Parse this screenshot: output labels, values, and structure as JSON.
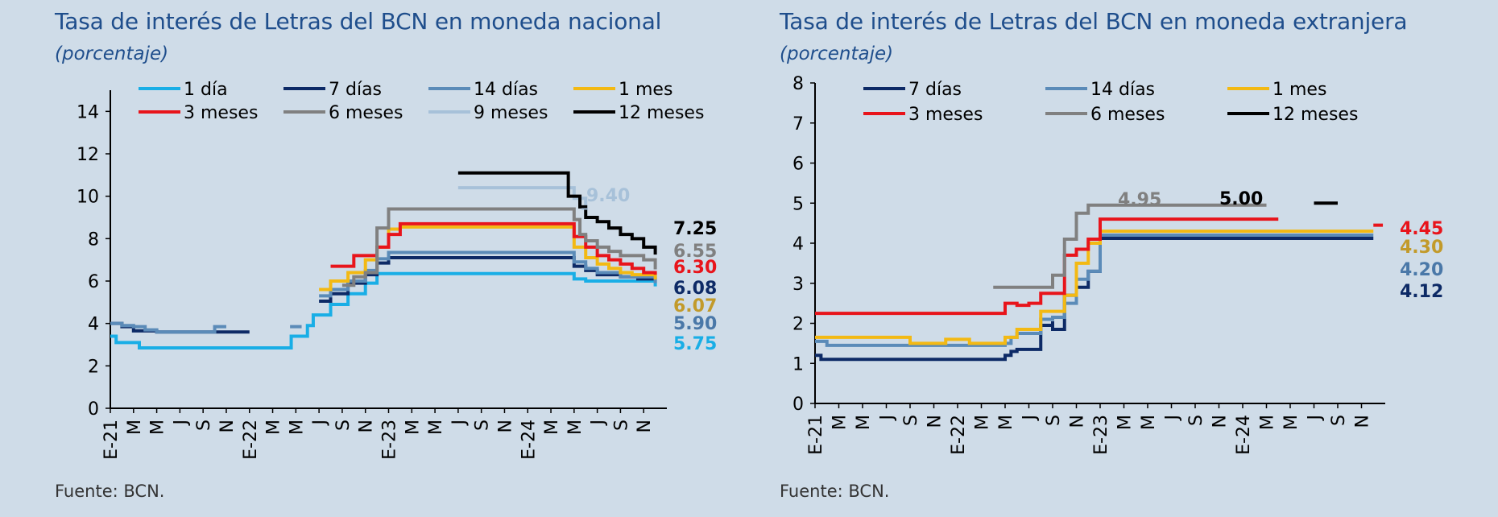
{
  "source_text": "Fuente: BCN.",
  "chart_data": [
    {
      "type": "line",
      "title": "Tasa de interés de Letras del BCN en moneda nacional",
      "subtitle": "(porcentaje)",
      "ylim": [
        0,
        15
      ],
      "yticks": [
        0,
        2,
        4,
        6,
        8,
        10,
        12,
        14
      ],
      "xlim": [
        0,
        48
      ],
      "xtick_labels": [
        "E-21",
        "M",
        "M",
        "J",
        "S",
        "N",
        "E-22",
        "M",
        "M",
        "J",
        "S",
        "N",
        "E-23",
        "M",
        "M",
        "J",
        "S",
        "N",
        "E-24",
        "M",
        "M",
        "J",
        "S",
        "N"
      ],
      "x_unit": "months since Jan-2021",
      "series": [
        {
          "name": "1 día",
          "color": "#19aee6",
          "values": [
            [
              0,
              3.4
            ],
            [
              0.5,
              3.1
            ],
            [
              2.5,
              2.85
            ],
            [
              6,
              2.85
            ],
            [
              12,
              2.85
            ],
            [
              15.5,
              2.85
            ],
            [
              15.6,
              3.4
            ],
            [
              17,
              3.9
            ],
            [
              17.5,
              4.4
            ],
            [
              19,
              4.9
            ],
            [
              20.5,
              5.4
            ],
            [
              22,
              5.9
            ],
            [
              23,
              6.35
            ],
            [
              30,
              6.35
            ],
            [
              36,
              6.35
            ],
            [
              40,
              6.35
            ],
            [
              40,
              6.1
            ],
            [
              41,
              6.0
            ],
            [
              42,
              6.0
            ],
            [
              47,
              5.75
            ]
          ]
        },
        {
          "name": "7 días",
          "color": "#0d2a66",
          "values": [
            [
              0,
              4.0
            ],
            [
              1,
              3.85
            ],
            [
              2,
              3.65
            ],
            [
              4,
              3.6
            ],
            [
              12,
              3.6
            ],
            [
              12.5,
              null
            ],
            [
              18,
              5.05
            ],
            [
              19,
              5.4
            ],
            [
              20.5,
              5.9
            ],
            [
              22,
              6.3
            ],
            [
              23,
              6.85
            ],
            [
              24,
              7.1
            ],
            [
              36,
              7.1
            ],
            [
              40,
              7.1
            ],
            [
              40,
              6.7
            ],
            [
              41,
              6.5
            ],
            [
              42,
              6.3
            ],
            [
              44,
              6.2
            ],
            [
              45.5,
              6.1
            ],
            [
              47,
              6.08
            ]
          ]
        },
        {
          "name": "14 días",
          "color": "#5b8bb8",
          "values": [
            [
              0,
              4.0
            ],
            [
              1,
              3.9
            ],
            [
              2,
              3.85
            ],
            [
              3,
              3.7
            ],
            [
              4,
              3.6
            ],
            [
              7,
              3.6
            ],
            [
              9,
              3.85
            ],
            [
              10,
              3.85
            ],
            [
              10,
              null
            ],
            [
              15.5,
              3.85
            ],
            [
              16.5,
              3.85
            ],
            [
              16.5,
              null
            ],
            [
              18,
              5.3
            ],
            [
              19,
              5.6
            ],
            [
              20.5,
              6.0
            ],
            [
              22,
              6.5
            ],
            [
              23,
              7.05
            ],
            [
              24,
              7.35
            ],
            [
              36,
              7.35
            ],
            [
              40,
              7.35
            ],
            [
              40,
              6.9
            ],
            [
              41,
              6.6
            ],
            [
              42,
              6.4
            ],
            [
              44,
              6.2
            ],
            [
              47,
              5.9
            ]
          ]
        },
        {
          "name": "1 mes",
          "color": "#f3b913",
          "values": [
            [
              18,
              5.6
            ],
            [
              19,
              6.0
            ],
            [
              20.5,
              6.4
            ],
            [
              22,
              7.0
            ],
            [
              23,
              7.6
            ],
            [
              24,
              8.45
            ],
            [
              25,
              8.55
            ],
            [
              36,
              8.55
            ],
            [
              40,
              8.55
            ],
            [
              40,
              7.6
            ],
            [
              41,
              7.1
            ],
            [
              42,
              6.8
            ],
            [
              43,
              6.6
            ],
            [
              44,
              6.4
            ],
            [
              45,
              6.3
            ],
            [
              47,
              6.07
            ]
          ]
        },
        {
          "name": "3 meses",
          "color": "#e8141b",
          "values": [
            [
              19,
              6.7
            ],
            [
              21,
              6.7
            ],
            [
              21,
              7.2
            ],
            [
              23,
              7.2
            ],
            [
              23,
              7.6
            ],
            [
              24,
              8.2
            ],
            [
              25,
              8.7
            ],
            [
              36,
              8.7
            ],
            [
              40,
              8.7
            ],
            [
              40,
              8.1
            ],
            [
              41,
              7.6
            ],
            [
              42,
              7.2
            ],
            [
              43,
              7.0
            ],
            [
              44,
              6.8
            ],
            [
              45,
              6.6
            ],
            [
              46,
              6.4
            ],
            [
              47,
              6.3
            ]
          ]
        },
        {
          "name": "6 meses",
          "color": "#808080",
          "values": [
            [
              20,
              5.8
            ],
            [
              21,
              6.2
            ],
            [
              22,
              6.4
            ],
            [
              23,
              8.5
            ],
            [
              24,
              9.4
            ],
            [
              36,
              9.4
            ],
            [
              39,
              9.4
            ],
            [
              40,
              8.9
            ],
            [
              40.5,
              8.2
            ],
            [
              41,
              7.9
            ],
            [
              42,
              7.6
            ],
            [
              43,
              7.4
            ],
            [
              44,
              7.2
            ],
            [
              46,
              7.0
            ],
            [
              47,
              6.55
            ]
          ]
        },
        {
          "name": "9 meses",
          "color": "#a7c1d9",
          "values": [
            [
              30,
              10.4
            ],
            [
              36,
              10.4
            ],
            [
              39,
              10.4
            ],
            [
              40,
              9.9
            ],
            [
              41,
              9.4
            ]
          ]
        },
        {
          "name": "12 meses",
          "color": "#000000",
          "values": [
            [
              30,
              11.1
            ],
            [
              36,
              11.1
            ],
            [
              39,
              11.1
            ],
            [
              39.5,
              10.0
            ],
            [
              40.5,
              9.5
            ],
            [
              41,
              9.0
            ],
            [
              42,
              8.8
            ],
            [
              43,
              8.5
            ],
            [
              44,
              8.2
            ],
            [
              45,
              8.0
            ],
            [
              46,
              7.6
            ],
            [
              47,
              7.25
            ]
          ]
        }
      ],
      "end_labels": [
        {
          "text": "9.40",
          "color": "#a7c1d9",
          "value": 9.4
        },
        {
          "text": "7.25",
          "color": "#000000",
          "value": 7.25
        },
        {
          "text": "6.55",
          "color": "#808080",
          "value": 6.55
        },
        {
          "text": "6.30",
          "color": "#e8141b",
          "value": 6.3
        },
        {
          "text": "6.08",
          "color": "#0d2a66",
          "value": 6.08
        },
        {
          "text": "6.07",
          "color": "#c29a2a",
          "value": 6.07
        },
        {
          "text": "5.90",
          "color": "#4a78a8",
          "value": 5.9
        },
        {
          "text": "5.75",
          "color": "#19aee6",
          "value": 5.75
        }
      ]
    },
    {
      "type": "line",
      "title": "Tasa de interés de Letras del BCN en moneda extranjera",
      "subtitle": "(porcentaje)",
      "ylim": [
        0,
        8
      ],
      "yticks": [
        0,
        1,
        2,
        3,
        4,
        5,
        6,
        7,
        8
      ],
      "xlim": [
        0,
        48
      ],
      "xtick_labels": [
        "E-21",
        "M",
        "M",
        "J",
        "S",
        "N",
        "E-22",
        "M",
        "M",
        "J",
        "S",
        "N",
        "E-23",
        "M",
        "M",
        "J",
        "S",
        "N",
        "E-24",
        "M",
        "M",
        "J",
        "S",
        "N"
      ],
      "x_unit": "months since Jan-2021",
      "series": [
        {
          "name": "7 días",
          "color": "#0d2a66",
          "values": [
            [
              0,
              1.2
            ],
            [
              0.5,
              1.1
            ],
            [
              7,
              1.1
            ],
            [
              16,
              1.1
            ],
            [
              16,
              1.2
            ],
            [
              16.5,
              1.3
            ],
            [
              17,
              1.35
            ],
            [
              19,
              1.35
            ],
            [
              19,
              1.95
            ],
            [
              20,
              2.05
            ],
            [
              20,
              1.85
            ],
            [
              21,
              2.0
            ],
            [
              21,
              2.7
            ],
            [
              22,
              2.9
            ],
            [
              23,
              3.0
            ],
            [
              23,
              3.3
            ],
            [
              24,
              3.3
            ],
            [
              24,
              4.12
            ],
            [
              36,
              4.12
            ],
            [
              47,
              4.12
            ]
          ]
        },
        {
          "name": "14 días",
          "color": "#5b8bb8",
          "values": [
            [
              0,
              1.55
            ],
            [
              1,
              1.45
            ],
            [
              7,
              1.45
            ],
            [
              16,
              1.45
            ],
            [
              16,
              1.5
            ],
            [
              16.5,
              1.65
            ],
            [
              17,
              1.75
            ],
            [
              19,
              1.75
            ],
            [
              19,
              2.1
            ],
            [
              20,
              2.15
            ],
            [
              21,
              2.5
            ],
            [
              22,
              3.1
            ],
            [
              23,
              3.3
            ],
            [
              24,
              3.3
            ],
            [
              24,
              4.2
            ],
            [
              36,
              4.2
            ],
            [
              47,
              4.2
            ]
          ]
        },
        {
          "name": "1 mes",
          "color": "#f3b913",
          "values": [
            [
              0,
              1.65
            ],
            [
              7,
              1.65
            ],
            [
              8,
              1.5
            ],
            [
              11,
              1.6
            ],
            [
              13,
              1.5
            ],
            [
              16,
              1.5
            ],
            [
              16,
              1.65
            ],
            [
              17,
              1.85
            ],
            [
              19,
              1.85
            ],
            [
              19,
              2.3
            ],
            [
              20,
              2.3
            ],
            [
              21,
              2.7
            ],
            [
              22,
              3.5
            ],
            [
              23,
              3.6
            ],
            [
              23,
              4.0
            ],
            [
              24,
              4.0
            ],
            [
              24,
              4.3
            ],
            [
              36,
              4.3
            ],
            [
              47,
              4.3
            ]
          ]
        },
        {
          "name": "3 meses",
          "color": "#e8141b",
          "values": [
            [
              0,
              2.25
            ],
            [
              7,
              2.25
            ],
            [
              14,
              2.25
            ],
            [
              16,
              2.25
            ],
            [
              16,
              2.5
            ],
            [
              17,
              2.45
            ],
            [
              18,
              2.5
            ],
            [
              19,
              2.5
            ],
            [
              19,
              2.75
            ],
            [
              20,
              2.75
            ],
            [
              21,
              3.7
            ],
            [
              22,
              3.85
            ],
            [
              23,
              4.1
            ],
            [
              24,
              4.1
            ],
            [
              24,
              4.6
            ],
            [
              36,
              4.6
            ],
            [
              39,
              4.6
            ],
            [
              39,
              null
            ],
            [
              47,
              4.45
            ],
            [
              47.8,
              4.45
            ]
          ]
        },
        {
          "name": "6 meses",
          "color": "#808080",
          "values": [
            [
              15,
              2.9
            ],
            [
              19,
              2.9
            ],
            [
              20,
              3.2
            ],
            [
              21,
              3.2
            ],
            [
              21,
              4.1
            ],
            [
              22,
              4.4
            ],
            [
              22,
              4.75
            ],
            [
              23,
              4.75
            ],
            [
              23,
              4.95
            ],
            [
              36,
              4.95
            ],
            [
              38,
              4.95
            ]
          ]
        },
        {
          "name": "12 meses",
          "color": "#000000",
          "values": [
            [
              42,
              5.0
            ],
            [
              44,
              5.0
            ]
          ]
        }
      ],
      "end_labels": [
        {
          "text": "4.95",
          "color": "#808080",
          "value": 4.95
        },
        {
          "text": "5.00",
          "color": "#000000",
          "value": 5.0
        },
        {
          "text": "4.45",
          "color": "#e8141b",
          "value": 4.45
        },
        {
          "text": "4.30",
          "color": "#c29a2a",
          "value": 4.3
        },
        {
          "text": "4.20",
          "color": "#4a78a8",
          "value": 4.2
        },
        {
          "text": "4.12",
          "color": "#0d2a66",
          "value": 4.12
        }
      ]
    }
  ]
}
